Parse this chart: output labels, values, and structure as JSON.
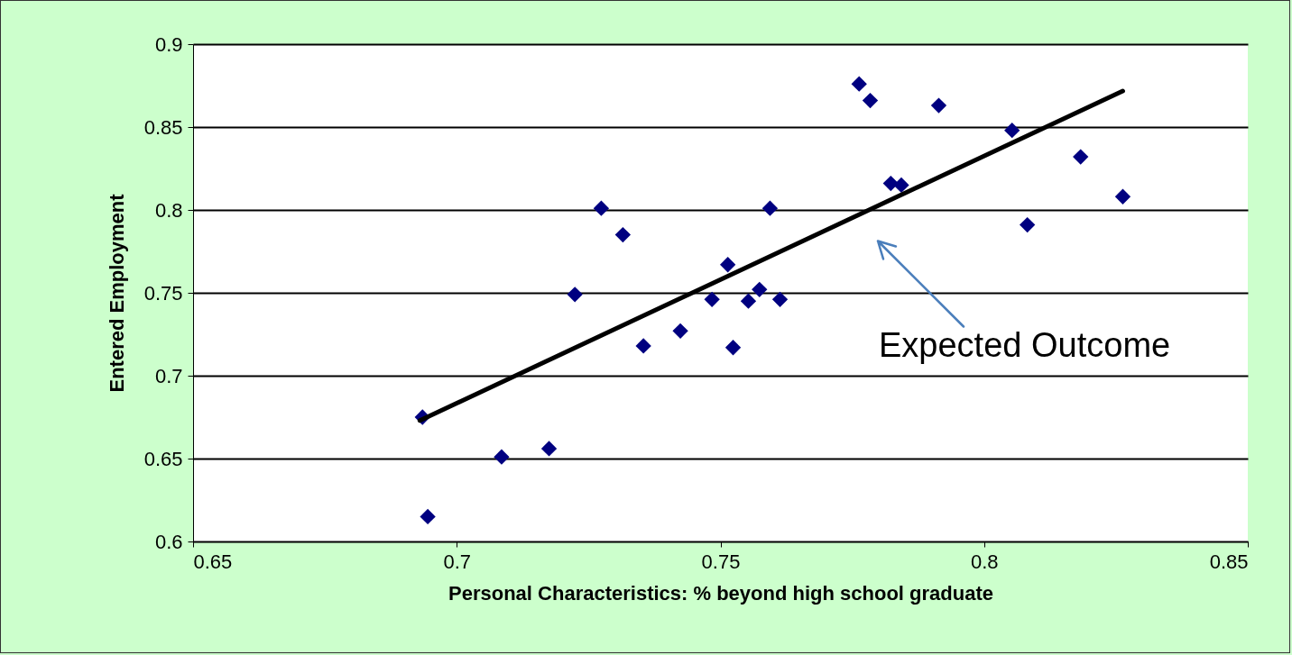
{
  "chart_data": {
    "type": "scatter",
    "xlabel": "Personal Characteristics:  % beyond high school graduate",
    "ylabel": "Entered Employment",
    "xlim": [
      0.65,
      0.85
    ],
    "xticks": [
      0.65,
      0.7,
      0.75,
      0.8,
      0.85
    ],
    "ylim": [
      0.6,
      0.9
    ],
    "yticks": [
      0.6,
      0.65,
      0.7,
      0.75,
      0.8,
      0.85,
      0.9
    ],
    "grid": "y",
    "series": [
      {
        "marker": "diamond",
        "color": "#000080",
        "x": [
          0.6935,
          0.6945,
          0.7085,
          0.7175,
          0.7224,
          0.7274,
          0.7315,
          0.7354,
          0.7424,
          0.7484,
          0.7514,
          0.7524,
          0.7553,
          0.7574,
          0.7594,
          0.7613,
          0.7763,
          0.7784,
          0.7823,
          0.7843,
          0.7914,
          0.8053,
          0.8082,
          0.8183,
          0.8263
        ],
        "values": [
          0.675,
          0.615,
          0.651,
          0.656,
          0.749,
          0.801,
          0.785,
          0.718,
          0.727,
          0.746,
          0.767,
          0.717,
          0.745,
          0.752,
          0.801,
          0.746,
          0.876,
          0.866,
          0.816,
          0.815,
          0.863,
          0.848,
          0.791,
          0.832,
          0.808
        ]
      },
      {
        "type": "line",
        "color": "#000000",
        "x": [
          0.693,
          0.8263
        ],
        "values": [
          0.673,
          0.8717
        ]
      }
    ],
    "annotations": [
      "Expected Outcome"
    ]
  }
}
